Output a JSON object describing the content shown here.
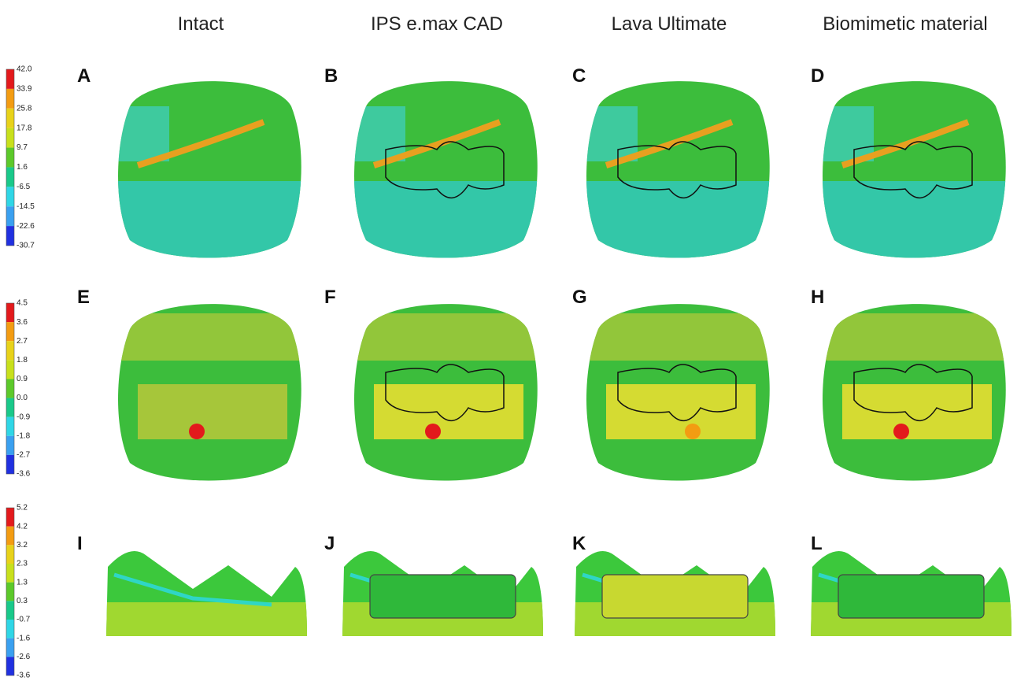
{
  "column_titles": [
    "Intact",
    "IPS e.max CAD",
    "Lava Ultimate",
    "Biomimetic material"
  ],
  "rows": [
    {
      "panels": [
        "A",
        "B",
        "C",
        "D"
      ],
      "colorbar": [
        "42.0",
        "33.9",
        "25.8",
        "17.8",
        "9.7",
        "1.6",
        "-6.5",
        "-14.5",
        "-22.6",
        "-30.7"
      ]
    },
    {
      "panels": [
        "E",
        "F",
        "G",
        "H"
      ],
      "colorbar": [
        "4.5",
        "3.6",
        "2.7",
        "1.8",
        "0.9",
        "0.0",
        "-0.9",
        "-1.8",
        "-2.7",
        "-3.6"
      ]
    },
    {
      "panels": [
        "I",
        "J",
        "K",
        "L"
      ],
      "colorbar": [
        "5.2",
        "4.2",
        "3.2",
        "2.3",
        "1.3",
        "0.3",
        "-0.7",
        "-1.6",
        "-2.6",
        "-3.6"
      ]
    }
  ]
}
